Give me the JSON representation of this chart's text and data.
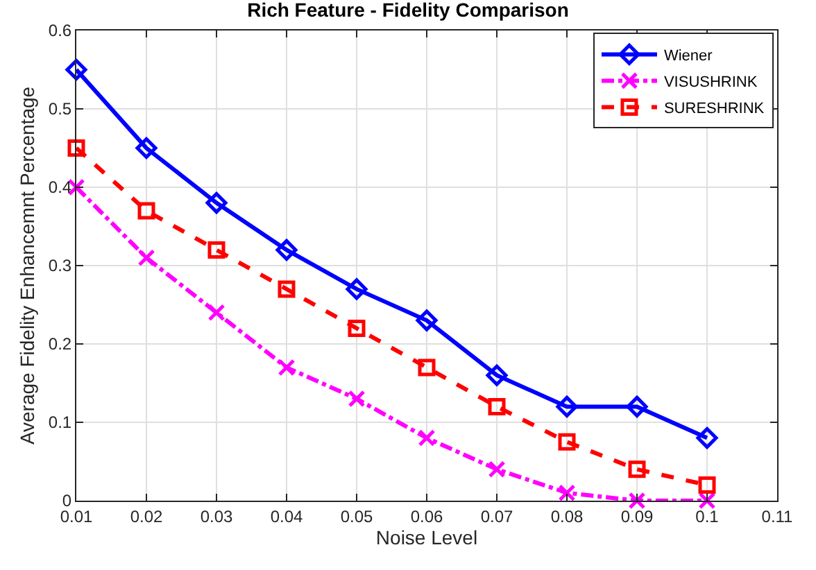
{
  "chart_data": {
    "type": "line",
    "title": "Rich Feature - Fidelity Comparison",
    "xlabel": "Noise Level",
    "ylabel": "Average Fidelity Enhancemnt Percentage",
    "x": [
      0.01,
      0.02,
      0.03,
      0.04,
      0.05,
      0.06,
      0.07,
      0.08,
      0.09,
      0.1
    ],
    "series": [
      {
        "name": "Wiener",
        "color": "#0000ff",
        "marker": "diamond",
        "line_style": "solid",
        "values": [
          0.55,
          0.45,
          0.38,
          0.32,
          0.27,
          0.23,
          0.16,
          0.12,
          0.12,
          0.08
        ]
      },
      {
        "name": "VISUSHRINK",
        "color": "#ff00ff",
        "marker": "cross",
        "line_style": "dashdot",
        "values": [
          0.4,
          0.31,
          0.24,
          0.17,
          0.13,
          0.08,
          0.04,
          0.01,
          0.0,
          0.0
        ]
      },
      {
        "name": "SURESHRINK",
        "color": "#ff0000",
        "marker": "square",
        "line_style": "dashed",
        "values": [
          0.45,
          0.37,
          0.32,
          0.27,
          0.22,
          0.17,
          0.12,
          0.075,
          0.04,
          0.02
        ]
      }
    ],
    "xlim": [
      0.01,
      0.11
    ],
    "xticks": [
      {
        "value": 0.01,
        "label": "0.01"
      },
      {
        "value": 0.02,
        "label": "0.02"
      },
      {
        "value": 0.03,
        "label": "0.03"
      },
      {
        "value": 0.04,
        "label": "0.04"
      },
      {
        "value": 0.05,
        "label": "0.05"
      },
      {
        "value": 0.06,
        "label": "0.06"
      },
      {
        "value": 0.07,
        "label": "0.07"
      },
      {
        "value": 0.08,
        "label": "0.08"
      },
      {
        "value": 0.09,
        "label": "0.09"
      },
      {
        "value": 0.1,
        "label": "0.1"
      },
      {
        "value": 0.11,
        "label": "0.11"
      }
    ],
    "ylim": [
      0,
      0.6
    ],
    "yticks": [
      0,
      0.1,
      0.2,
      0.3,
      0.4,
      0.5,
      0.6
    ],
    "grid": true,
    "legend": "top right"
  }
}
